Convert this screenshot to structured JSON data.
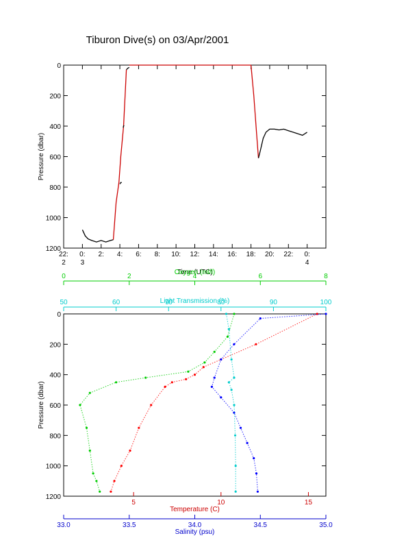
{
  "title": "Tiburon Dive(s) on 03/Apr/2001",
  "chart_data": [
    {
      "type": "line",
      "xlabel": "Time (UTC)",
      "ylabel": "Pressure (dbar)",
      "xlim": [
        22,
        26
      ],
      "ylim": [
        1200,
        0
      ],
      "x_ticks": [
        {
          "v": 22.0,
          "line1": "22:",
          "line2": "2"
        },
        {
          "v": 24.0,
          "line1": "0:",
          "line2": "3"
        },
        {
          "v": 26.0,
          "line1": "2:",
          "line2": ""
        },
        {
          "v": 28.0,
          "line1": "4:",
          "line2": ""
        },
        {
          "v": 30.0,
          "line1": "6:",
          "line2": ""
        },
        {
          "v": 32.0,
          "line1": "8:",
          "line2": ""
        },
        {
          "v": 34.0,
          "line1": "10:",
          "line2": ""
        },
        {
          "v": 36.0,
          "line1": "12:",
          "line2": ""
        },
        {
          "v": 38.0,
          "line1": "14:",
          "line2": ""
        },
        {
          "v": 40.0,
          "line1": "16:",
          "line2": ""
        },
        {
          "v": 42.0,
          "line1": "18:",
          "line2": ""
        },
        {
          "v": 44.0,
          "line1": "20:",
          "line2": ""
        },
        {
          "v": 46.0,
          "line1": "22:",
          "line2": ""
        },
        {
          "v": 48.0,
          "line1": "0:",
          "line2": "4"
        }
      ],
      "x_range": [
        22,
        50
      ],
      "y_ticks": [
        0,
        200,
        400,
        600,
        800,
        1000,
        1200
      ],
      "series": [
        {
          "color": "#000000",
          "x": [
            24.0,
            24.3,
            24.6,
            25.0,
            25.5,
            26.0,
            26.5,
            27.0,
            27.3
          ],
          "y": [
            1080,
            1120,
            1140,
            1150,
            1160,
            1150,
            1160,
            1150,
            1145
          ]
        },
        {
          "color": "#cc0000",
          "x": [
            27.3,
            27.6,
            27.9,
            28.1,
            28.4,
            28.7
          ],
          "y": [
            1145,
            900,
            770,
            600,
            400,
            30
          ]
        },
        {
          "color": "#000000",
          "x": [
            28.0,
            28.1,
            28.2
          ],
          "y": [
            780,
            770,
            770
          ]
        },
        {
          "color": "#000000",
          "x": [
            28.35,
            28.4,
            28.45
          ],
          "y": [
            410,
            400,
            395
          ]
        },
        {
          "color": "#000000",
          "x": [
            28.7,
            28.85,
            29.0
          ],
          "y": [
            30,
            20,
            15
          ]
        },
        {
          "color": "#cc0000",
          "x": [
            29.0,
            31.0,
            35.0,
            39.0,
            41.5,
            42.0
          ],
          "y": [
            0,
            0,
            0,
            0,
            0,
            0
          ]
        },
        {
          "color": "#cc0000",
          "x": [
            42.0,
            42.3,
            42.6,
            42.8
          ],
          "y": [
            0,
            200,
            450,
            610
          ]
        },
        {
          "color": "#000000",
          "x": [
            42.8,
            43.0,
            43.3,
            43.6,
            44.0,
            44.5,
            45.0,
            45.5,
            46.0,
            46.5,
            47.0,
            47.5,
            48.0
          ],
          "y": [
            610,
            560,
            480,
            440,
            420,
            420,
            425,
            420,
            430,
            440,
            450,
            460,
            440
          ]
        }
      ]
    },
    {
      "type": "scatter",
      "ylabel": "Pressure (dbar)",
      "ylim": [
        1200,
        0
      ],
      "y_ticks": [
        0,
        200,
        400,
        600,
        800,
        1000,
        1200
      ],
      "axes": {
        "oxygen": {
          "label": "Oxygen (ml/l)",
          "range": [
            0,
            8
          ],
          "ticks": [
            0,
            2,
            4,
            6,
            8
          ],
          "color": "#00cc00"
        },
        "light": {
          "label": "Light Transmission (%)",
          "range": [
            50,
            100
          ],
          "ticks": [
            50,
            60,
            70,
            80,
            90,
            100
          ],
          "color": "#00cccc"
        },
        "temperature": {
          "label": "Temperature (C)",
          "range": [
            1,
            16
          ],
          "ticks": [
            5,
            10,
            15
          ],
          "color": "#cc0000"
        },
        "salinity": {
          "label": "Salinity (psu)",
          "range": [
            33.0,
            35.0
          ],
          "ticks": [
            "33.0",
            "33.5",
            "34.0",
            "34.5",
            "35.0"
          ],
          "color": "#0000cc"
        }
      },
      "series": [
        {
          "axis": "temperature",
          "color": "#ff0000",
          "x": [
            15.5,
            12.0,
            10.0,
            9.0,
            8.5,
            8.0,
            7.2,
            6.8,
            6.0,
            5.3,
            4.8,
            4.3,
            3.9,
            3.7
          ],
          "y": [
            0,
            200,
            300,
            350,
            400,
            430,
            450,
            480,
            600,
            750,
            900,
            1000,
            1100,
            1170
          ]
        },
        {
          "axis": "oxygen",
          "color": "#00cc00",
          "x": [
            5.2,
            5.0,
            4.6,
            4.3,
            3.8,
            2.5,
            1.6,
            0.8,
            0.5,
            0.7,
            0.8,
            0.9,
            1.0,
            1.1
          ],
          "y": [
            0,
            150,
            250,
            320,
            380,
            420,
            450,
            520,
            600,
            750,
            900,
            1050,
            1100,
            1170
          ]
        },
        {
          "axis": "salinity",
          "color": "#0000ff",
          "x": [
            35.0,
            34.5,
            34.3,
            34.2,
            34.15,
            34.13,
            34.2,
            34.3,
            34.35,
            34.4,
            34.45,
            34.47,
            34.48
          ],
          "y": [
            0,
            30,
            200,
            300,
            420,
            480,
            550,
            650,
            750,
            850,
            950,
            1050,
            1170
          ]
        },
        {
          "axis": "light",
          "color": "#00cccc",
          "x": [
            81,
            81.5,
            82,
            82.5,
            81.5,
            82,
            82.5,
            82.7,
            82.8,
            82.8
          ],
          "y": [
            0,
            100,
            300,
            420,
            450,
            500,
            600,
            800,
            1000,
            1170
          ]
        }
      ]
    }
  ]
}
